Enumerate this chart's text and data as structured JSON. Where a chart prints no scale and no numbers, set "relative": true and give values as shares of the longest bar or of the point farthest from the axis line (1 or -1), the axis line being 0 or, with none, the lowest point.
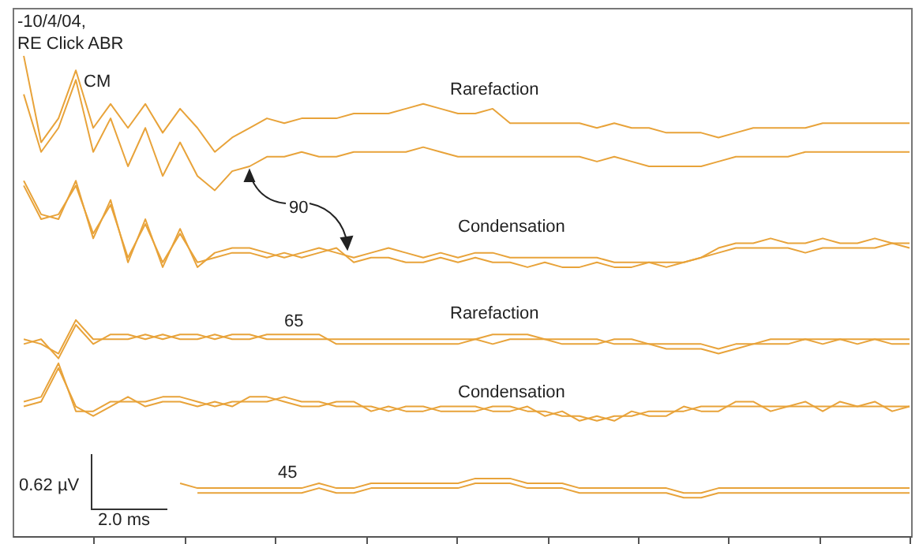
{
  "chart_data": {
    "type": "line",
    "relative": true,
    "legend": false,
    "marker": "none",
    "line_style": "solid",
    "categories": [
      null,
      null,
      null,
      null,
      null,
      null,
      null,
      null,
      null,
      null,
      null,
      null,
      null,
      null,
      null,
      null,
      null,
      null,
      null,
      null,
      null,
      null,
      null,
      null,
      null,
      null,
      null,
      null,
      null,
      null,
      null,
      null,
      null,
      null,
      null,
      null,
      null,
      null,
      null,
      null,
      null,
      null,
      null,
      null,
      null,
      null,
      null,
      null,
      null,
      null,
      null,
      null
    ],
    "annotations": [
      "-10/4/04,",
      "RE Click ABR",
      "CM",
      "Rarefaction",
      "90",
      "Condensation",
      "65",
      "Rarefaction",
      "Condensation",
      "0.62 µV",
      "45",
      "2.0 ms"
    ],
    "series": [
      {
        "color": "#e8a33a",
        "values": [
          1.0,
          0.82,
          0.87,
          0.97,
          0.85,
          0.9,
          0.85,
          0.9,
          0.84,
          0.89,
          0.85,
          0.8,
          0.83,
          0.85,
          0.87,
          0.86,
          0.87,
          0.87,
          0.87,
          0.88,
          0.88,
          0.88,
          0.89,
          0.9,
          0.89,
          0.88,
          0.88,
          0.89,
          0.86,
          0.86,
          0.86,
          0.86,
          0.86,
          0.85,
          0.86,
          0.85,
          0.85,
          0.84,
          0.84,
          0.84,
          0.83,
          0.84,
          0.85,
          0.85,
          0.85,
          0.85,
          0.86,
          0.86,
          0.86,
          0.86,
          0.86,
          0.86
        ]
      },
      {
        "color": "#e8a33a",
        "values": [
          0.92,
          0.8,
          0.85,
          0.95,
          0.8,
          0.87,
          0.77,
          0.85,
          0.75,
          0.82,
          0.75,
          0.72,
          0.76,
          0.77,
          0.79,
          0.79,
          0.8,
          0.79,
          0.79,
          0.8,
          0.8,
          0.8,
          0.8,
          0.81,
          0.8,
          0.79,
          0.79,
          0.79,
          0.79,
          0.79,
          0.79,
          0.79,
          0.79,
          0.78,
          0.79,
          0.78,
          0.77,
          0.77,
          0.77,
          0.77,
          0.78,
          0.79,
          0.79,
          0.79,
          0.79,
          0.8,
          0.8,
          0.8,
          0.8,
          0.8,
          0.8,
          0.8
        ]
      },
      {
        "color": "#e8a33a",
        "values": [
          0.74,
          0.67,
          0.66,
          0.74,
          0.62,
          0.7,
          0.57,
          0.66,
          0.56,
          0.64,
          0.56,
          0.59,
          0.6,
          0.6,
          0.59,
          0.58,
          0.59,
          0.6,
          0.59,
          0.58,
          0.59,
          0.6,
          0.59,
          0.58,
          0.59,
          0.58,
          0.59,
          0.59,
          0.58,
          0.58,
          0.58,
          0.58,
          0.58,
          0.58,
          0.57,
          0.57,
          0.57,
          0.57,
          0.57,
          0.58,
          0.59,
          0.6,
          0.6,
          0.6,
          0.6,
          0.59,
          0.6,
          0.6,
          0.6,
          0.6,
          0.61,
          0.6
        ]
      },
      {
        "color": "#e8a33a",
        "values": [
          0.73,
          0.66,
          0.67,
          0.73,
          0.63,
          0.69,
          0.58,
          0.65,
          0.57,
          0.63,
          0.57,
          0.58,
          0.59,
          0.59,
          0.58,
          0.59,
          0.58,
          0.59,
          0.6,
          0.57,
          0.58,
          0.58,
          0.57,
          0.57,
          0.58,
          0.57,
          0.58,
          0.57,
          0.57,
          0.56,
          0.57,
          0.56,
          0.56,
          0.57,
          0.56,
          0.56,
          0.57,
          0.56,
          0.57,
          0.58,
          0.6,
          0.61,
          0.61,
          0.62,
          0.61,
          0.61,
          0.62,
          0.61,
          0.61,
          0.62,
          0.61,
          0.61
        ]
      },
      {
        "color": "#e8a33a",
        "values": [
          0.41,
          0.4,
          0.38,
          0.45,
          0.41,
          0.41,
          0.41,
          0.42,
          0.41,
          0.42,
          0.42,
          0.41,
          0.42,
          0.42,
          0.41,
          0.41,
          0.41,
          0.41,
          0.41,
          0.41,
          0.41,
          0.41,
          0.41,
          0.41,
          0.41,
          0.41,
          0.41,
          0.42,
          0.42,
          0.42,
          0.41,
          0.41,
          0.41,
          0.41,
          0.4,
          0.4,
          0.4,
          0.4,
          0.4,
          0.4,
          0.39,
          0.4,
          0.4,
          0.41,
          0.41,
          0.41,
          0.41,
          0.41,
          0.41,
          0.41,
          0.4,
          0.4
        ]
      },
      {
        "color": "#e8a33a",
        "values": [
          0.4,
          0.41,
          0.37,
          0.44,
          0.4,
          0.42,
          0.42,
          0.41,
          0.42,
          0.41,
          0.41,
          0.42,
          0.41,
          0.41,
          0.42,
          0.42,
          0.42,
          0.42,
          0.4,
          0.4,
          0.4,
          0.4,
          0.4,
          0.4,
          0.4,
          0.4,
          0.41,
          0.4,
          0.41,
          0.41,
          0.41,
          0.4,
          0.4,
          0.4,
          0.41,
          0.41,
          0.4,
          0.39,
          0.39,
          0.39,
          0.38,
          0.39,
          0.4,
          0.4,
          0.4,
          0.41,
          0.4,
          0.41,
          0.4,
          0.41,
          0.41,
          0.41
        ]
      },
      {
        "color": "#e8a33a",
        "values": [
          0.28,
          0.29,
          0.36,
          0.26,
          0.26,
          0.28,
          0.28,
          0.28,
          0.29,
          0.29,
          0.28,
          0.27,
          0.28,
          0.28,
          0.28,
          0.29,
          0.28,
          0.28,
          0.27,
          0.27,
          0.27,
          0.26,
          0.27,
          0.27,
          0.26,
          0.26,
          0.26,
          0.27,
          0.27,
          0.26,
          0.26,
          0.25,
          0.25,
          0.24,
          0.25,
          0.25,
          0.26,
          0.26,
          0.26,
          0.27,
          0.27,
          0.27,
          0.27,
          0.27,
          0.27,
          0.27,
          0.27,
          0.27,
          0.27,
          0.27,
          0.27,
          0.27
        ]
      },
      {
        "color": "#e8a33a",
        "values": [
          0.27,
          0.28,
          0.35,
          0.27,
          0.25,
          0.27,
          0.29,
          0.27,
          0.28,
          0.28,
          0.27,
          0.28,
          0.27,
          0.29,
          0.29,
          0.28,
          0.27,
          0.27,
          0.28,
          0.28,
          0.26,
          0.27,
          0.26,
          0.26,
          0.27,
          0.27,
          0.27,
          0.26,
          0.26,
          0.27,
          0.25,
          0.26,
          0.24,
          0.25,
          0.24,
          0.26,
          0.25,
          0.25,
          0.27,
          0.26,
          0.26,
          0.28,
          0.28,
          0.26,
          0.27,
          0.28,
          0.26,
          0.28,
          0.27,
          0.28,
          0.26,
          0.27
        ]
      },
      {
        "color": "#e8a33a",
        "values": [
          null,
          null,
          null,
          null,
          null,
          null,
          null,
          null,
          null,
          0.11,
          0.1,
          0.1,
          0.1,
          0.1,
          0.1,
          0.1,
          0.1,
          0.11,
          0.1,
          0.1,
          0.11,
          0.11,
          0.11,
          0.11,
          0.11,
          0.11,
          0.12,
          0.12,
          0.12,
          0.11,
          0.11,
          0.11,
          0.1,
          0.1,
          0.1,
          0.1,
          0.1,
          0.1,
          0.09,
          0.09,
          0.1,
          0.1,
          0.1,
          0.1,
          0.1,
          0.1,
          0.1,
          0.1,
          0.1,
          0.1,
          0.1,
          0.1
        ]
      },
      {
        "color": "#e8a33a",
        "values": [
          null,
          null,
          null,
          null,
          null,
          null,
          null,
          null,
          null,
          null,
          0.09,
          0.09,
          0.09,
          0.09,
          0.09,
          0.09,
          0.09,
          0.1,
          0.09,
          0.09,
          0.1,
          0.1,
          0.1,
          0.1,
          0.1,
          0.1,
          0.11,
          0.11,
          0.11,
          0.1,
          0.1,
          0.1,
          0.09,
          0.09,
          0.09,
          0.09,
          0.09,
          0.09,
          0.08,
          0.08,
          0.09,
          0.09,
          0.09,
          0.09,
          0.09,
          0.09,
          0.09,
          0.09,
          0.09,
          0.09,
          0.09,
          0.09
        ]
      }
    ]
  }
}
